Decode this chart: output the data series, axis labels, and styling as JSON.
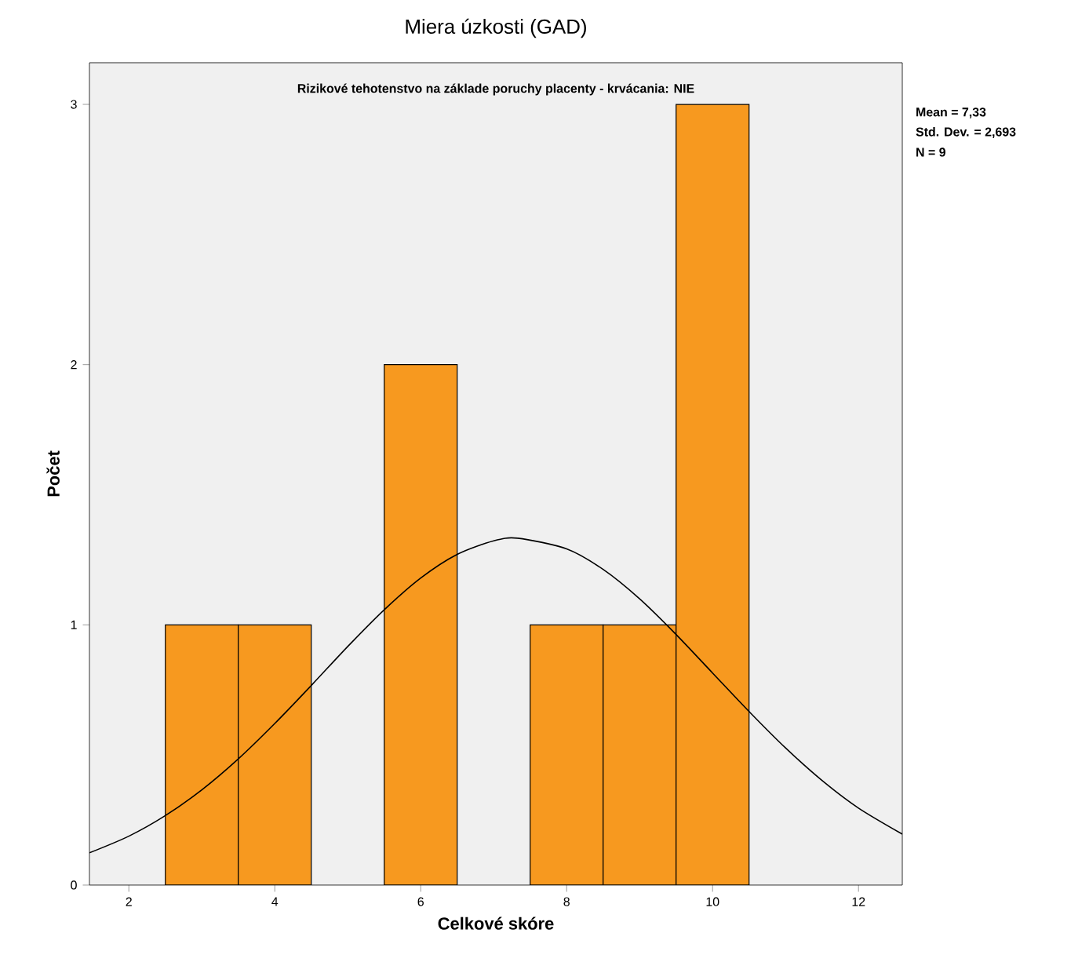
{
  "chart_data": {
    "type": "histogram",
    "title": "Miera úzkosti (GAD)",
    "subtitle": "Rizikové tehotenstvo na základe poruchy placenty - krvácania: NIE",
    "xlabel": "Celkové skóre",
    "ylabel": "Počet",
    "annotations": [
      "Mean = 7,33",
      "Std. Dev. = 2,693",
      "N = 9"
    ],
    "xlim": [
      1.46,
      12.6
    ],
    "ylim": [
      0,
      3.16
    ],
    "xticks": [
      2,
      4,
      6,
      8,
      10,
      12
    ],
    "yticks": [
      0,
      1,
      2,
      3
    ],
    "series": [
      {
        "color": "#f7991f",
        "bins": [
          2.5,
          3.5,
          4.5,
          5.5,
          6.5,
          7.5,
          8.5,
          9.5,
          10.5
        ],
        "values": [
          1,
          1,
          0,
          2,
          0,
          1,
          1,
          3
        ]
      },
      {
        "type": "line",
        "color": "#000000",
        "x": [
          1.46,
          2,
          2.5,
          3,
          3.5,
          4,
          4.5,
          5,
          5.5,
          6,
          6.5,
          7,
          7.33,
          8,
          8.5,
          9,
          9.5,
          10,
          10.5,
          11,
          11.5,
          12,
          12.6
        ],
        "values": [
          0.124,
          0.188,
          0.267,
          0.366,
          0.485,
          0.621,
          0.767,
          0.917,
          1.058,
          1.18,
          1.271,
          1.323,
          1.333,
          1.292,
          1.213,
          1.1,
          0.963,
          0.815,
          0.667,
          0.527,
          0.402,
          0.296,
          0.196
        ]
      }
    ]
  }
}
